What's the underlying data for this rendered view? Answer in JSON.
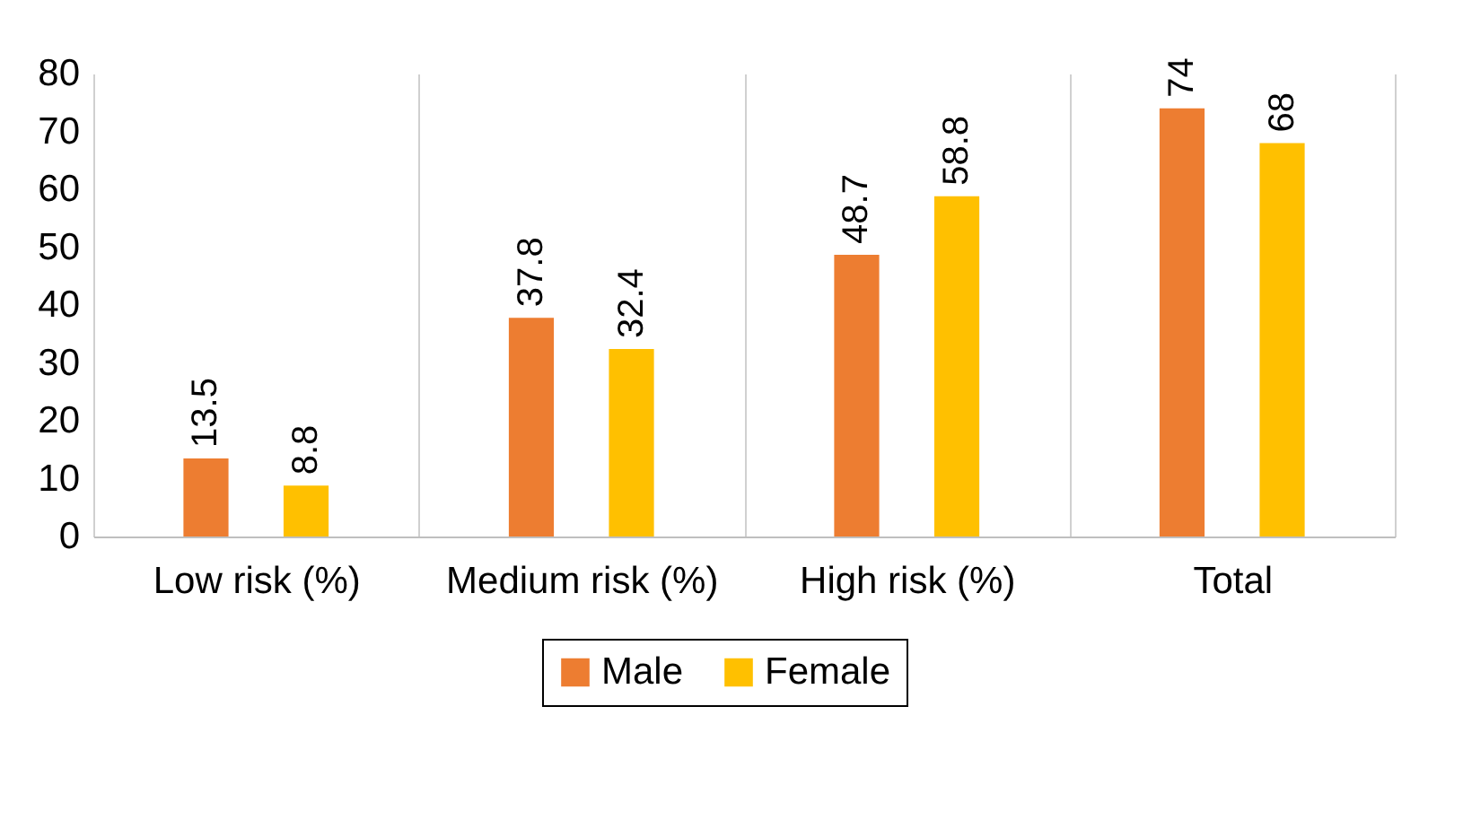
{
  "chart_data": {
    "type": "bar",
    "categories": [
      "Low risk (%)",
      "Medium risk (%)",
      "High risk (%)",
      "Total"
    ],
    "series": [
      {
        "name": "Male",
        "color": "#ed7d31",
        "values": [
          13.5,
          37.8,
          48.7,
          74
        ]
      },
      {
        "name": "Female",
        "color": "#ffc000",
        "values": [
          8.8,
          32.4,
          58.8,
          68
        ]
      }
    ],
    "ylim": [
      0,
      80
    ],
    "yticks": [
      0,
      10,
      20,
      30,
      40,
      50,
      60,
      70,
      80
    ],
    "grid": "x",
    "legend": "bottom",
    "data_labels": true
  }
}
